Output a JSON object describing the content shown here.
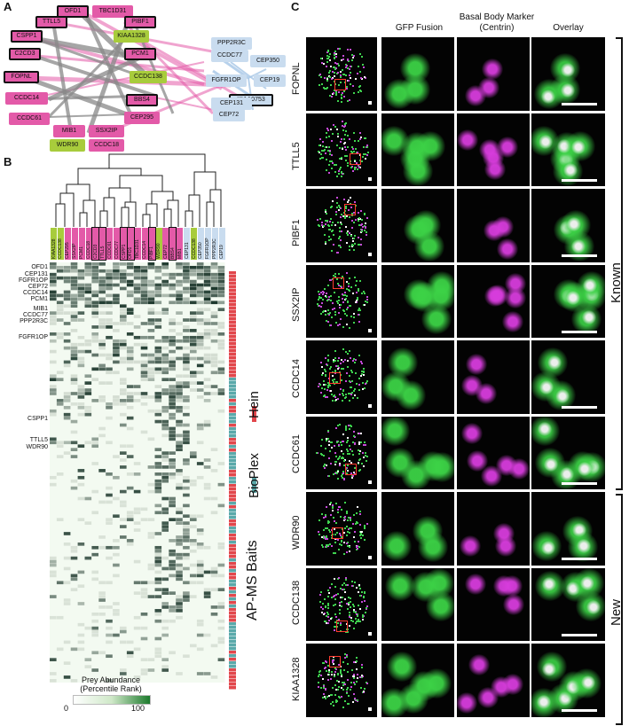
{
  "panels": {
    "a": "A",
    "b": "B",
    "c": "C"
  },
  "network": {
    "nodes": [
      {
        "label": "OFD1",
        "color": "pink",
        "bold": true
      },
      {
        "label": "TBC1D31",
        "color": "pink",
        "bold": false
      },
      {
        "label": "TTLL5",
        "color": "pink",
        "bold": true
      },
      {
        "label": "PIBF1",
        "color": "pink",
        "bold": true
      },
      {
        "label": "CSPP1",
        "color": "pink",
        "bold": true
      },
      {
        "label": "KIAA1328",
        "color": "green",
        "bold": false
      },
      {
        "label": "C2CD3",
        "color": "pink",
        "bold": true
      },
      {
        "label": "PCM1",
        "color": "pink",
        "bold": true
      },
      {
        "label": "FOPNL",
        "color": "pink",
        "bold": true
      },
      {
        "label": "CCDC138",
        "color": "green",
        "bold": false
      },
      {
        "label": "BBS4",
        "color": "pink",
        "bold": true
      },
      {
        "label": "CCDC14",
        "color": "pink",
        "bold": false
      },
      {
        "label": "CCDC61",
        "color": "pink",
        "bold": false
      },
      {
        "label": "CEP295",
        "color": "pink",
        "bold": false
      },
      {
        "label": "SSX2IP",
        "color": "pink",
        "bold": false
      },
      {
        "label": "MIB1",
        "color": "pink",
        "bold": false
      },
      {
        "label": "WDR90",
        "color": "green",
        "bold": false
      },
      {
        "label": "CCDC18",
        "color": "pink",
        "bold": false
      },
      {
        "label": "PPP2R3C",
        "color": "blue",
        "bold": false
      },
      {
        "label": "CCDC77",
        "color": "blue",
        "bold": false
      },
      {
        "label": "CEP350",
        "color": "blue",
        "bold": false
      },
      {
        "label": "FGFR1OP",
        "color": "blue",
        "bold": false
      },
      {
        "label": "CEP19",
        "color": "blue",
        "bold": false
      },
      {
        "label": "KIAA0753",
        "color": "blue",
        "bold": true
      },
      {
        "label": "CEP131",
        "color": "blue",
        "bold": false
      },
      {
        "label": "CEP72",
        "color": "blue",
        "bold": false
      }
    ]
  },
  "heatmap": {
    "bait_columns": [
      "KIAA1328",
      "CCDC138",
      "CEP295",
      "SSX2IP",
      "PCM1",
      "CCDC18",
      "C2CD3",
      "TTLL5",
      "CCDC61",
      "CCDC77",
      "CSPP1",
      "OFD1",
      "TBC1D31",
      "CCDC14",
      "PIBF1",
      "WDR90",
      "CEP72",
      "BBS4",
      "MIB1",
      "CEP131",
      "CCDC138",
      "CEP350",
      "FGFR1OP",
      "PPP2R3C",
      "CEP19"
    ],
    "row_labels": [
      "OFD1",
      "CEP131",
      "FGFR1OP",
      "CEP72",
      "CCDC14",
      "PCM1",
      "MIB1",
      "CCDC77",
      "PPP2R3C",
      "FGFR1OP",
      "CSPP1",
      "TTLL5",
      "WDR90"
    ],
    "side_label": "AP-MS Baits",
    "legend_hein": "Hein",
    "legend_bioplex": "BioPlex",
    "legend_title": "Prey Abundance\n(Percentile Rank)",
    "legend_min": "0",
    "legend_max": "100",
    "colors": {
      "hein": "#e2474c",
      "bioplex": "#5aa9aa",
      "low": "#eef7ea",
      "high": "#1c7a2c"
    }
  },
  "microscopy": {
    "col_headers": [
      "GFP Fusion",
      "Basal Body Marker\n(Centrin)",
      "Overlay"
    ],
    "rows": [
      "FOPNL",
      "TTLL5",
      "PIBF1",
      "SSX2IP",
      "CCDC14",
      "CCDC61",
      "WDR90",
      "CCDC138",
      "KIAA1328"
    ],
    "group_known": "Known",
    "group_new": "New"
  }
}
